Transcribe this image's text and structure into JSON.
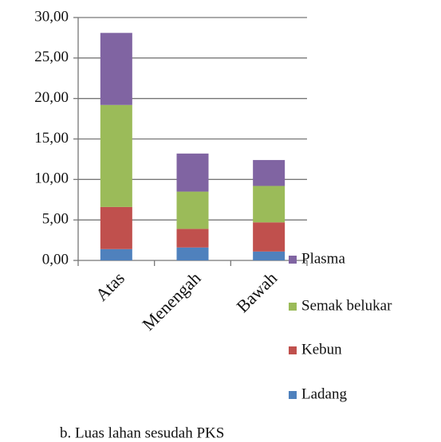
{
  "chart_data": {
    "type": "stacked_bar",
    "caption": "b. Luas lahan sesudah PKS",
    "categories": [
      "Atas",
      "Menengah",
      "Bawah"
    ],
    "series": [
      {
        "name": "Ladang",
        "color": "#4f81bd",
        "values": [
          1.4,
          1.6,
          1.1
        ]
      },
      {
        "name": "Kebun",
        "color": "#c0504d",
        "values": [
          5.2,
          2.3,
          3.6
        ]
      },
      {
        "name": "Semak belukar",
        "color": "#9bbb59",
        "values": [
          12.6,
          4.6,
          4.5
        ]
      },
      {
        "name": "Plasma",
        "color": "#8064a2",
        "values": [
          8.9,
          4.7,
          3.2
        ]
      }
    ],
    "ylim": [
      0,
      30
    ],
    "yticks": [
      {
        "value": 0,
        "label": "0,00"
      },
      {
        "value": 5,
        "label": "5,00"
      },
      {
        "value": 10,
        "label": "10,00"
      },
      {
        "value": 15,
        "label": "15,00"
      },
      {
        "value": 20,
        "label": "20,00"
      },
      {
        "value": 25,
        "label": "25,00"
      },
      {
        "value": 30,
        "label": "30,00"
      }
    ],
    "grid": true,
    "legend": "right"
  }
}
